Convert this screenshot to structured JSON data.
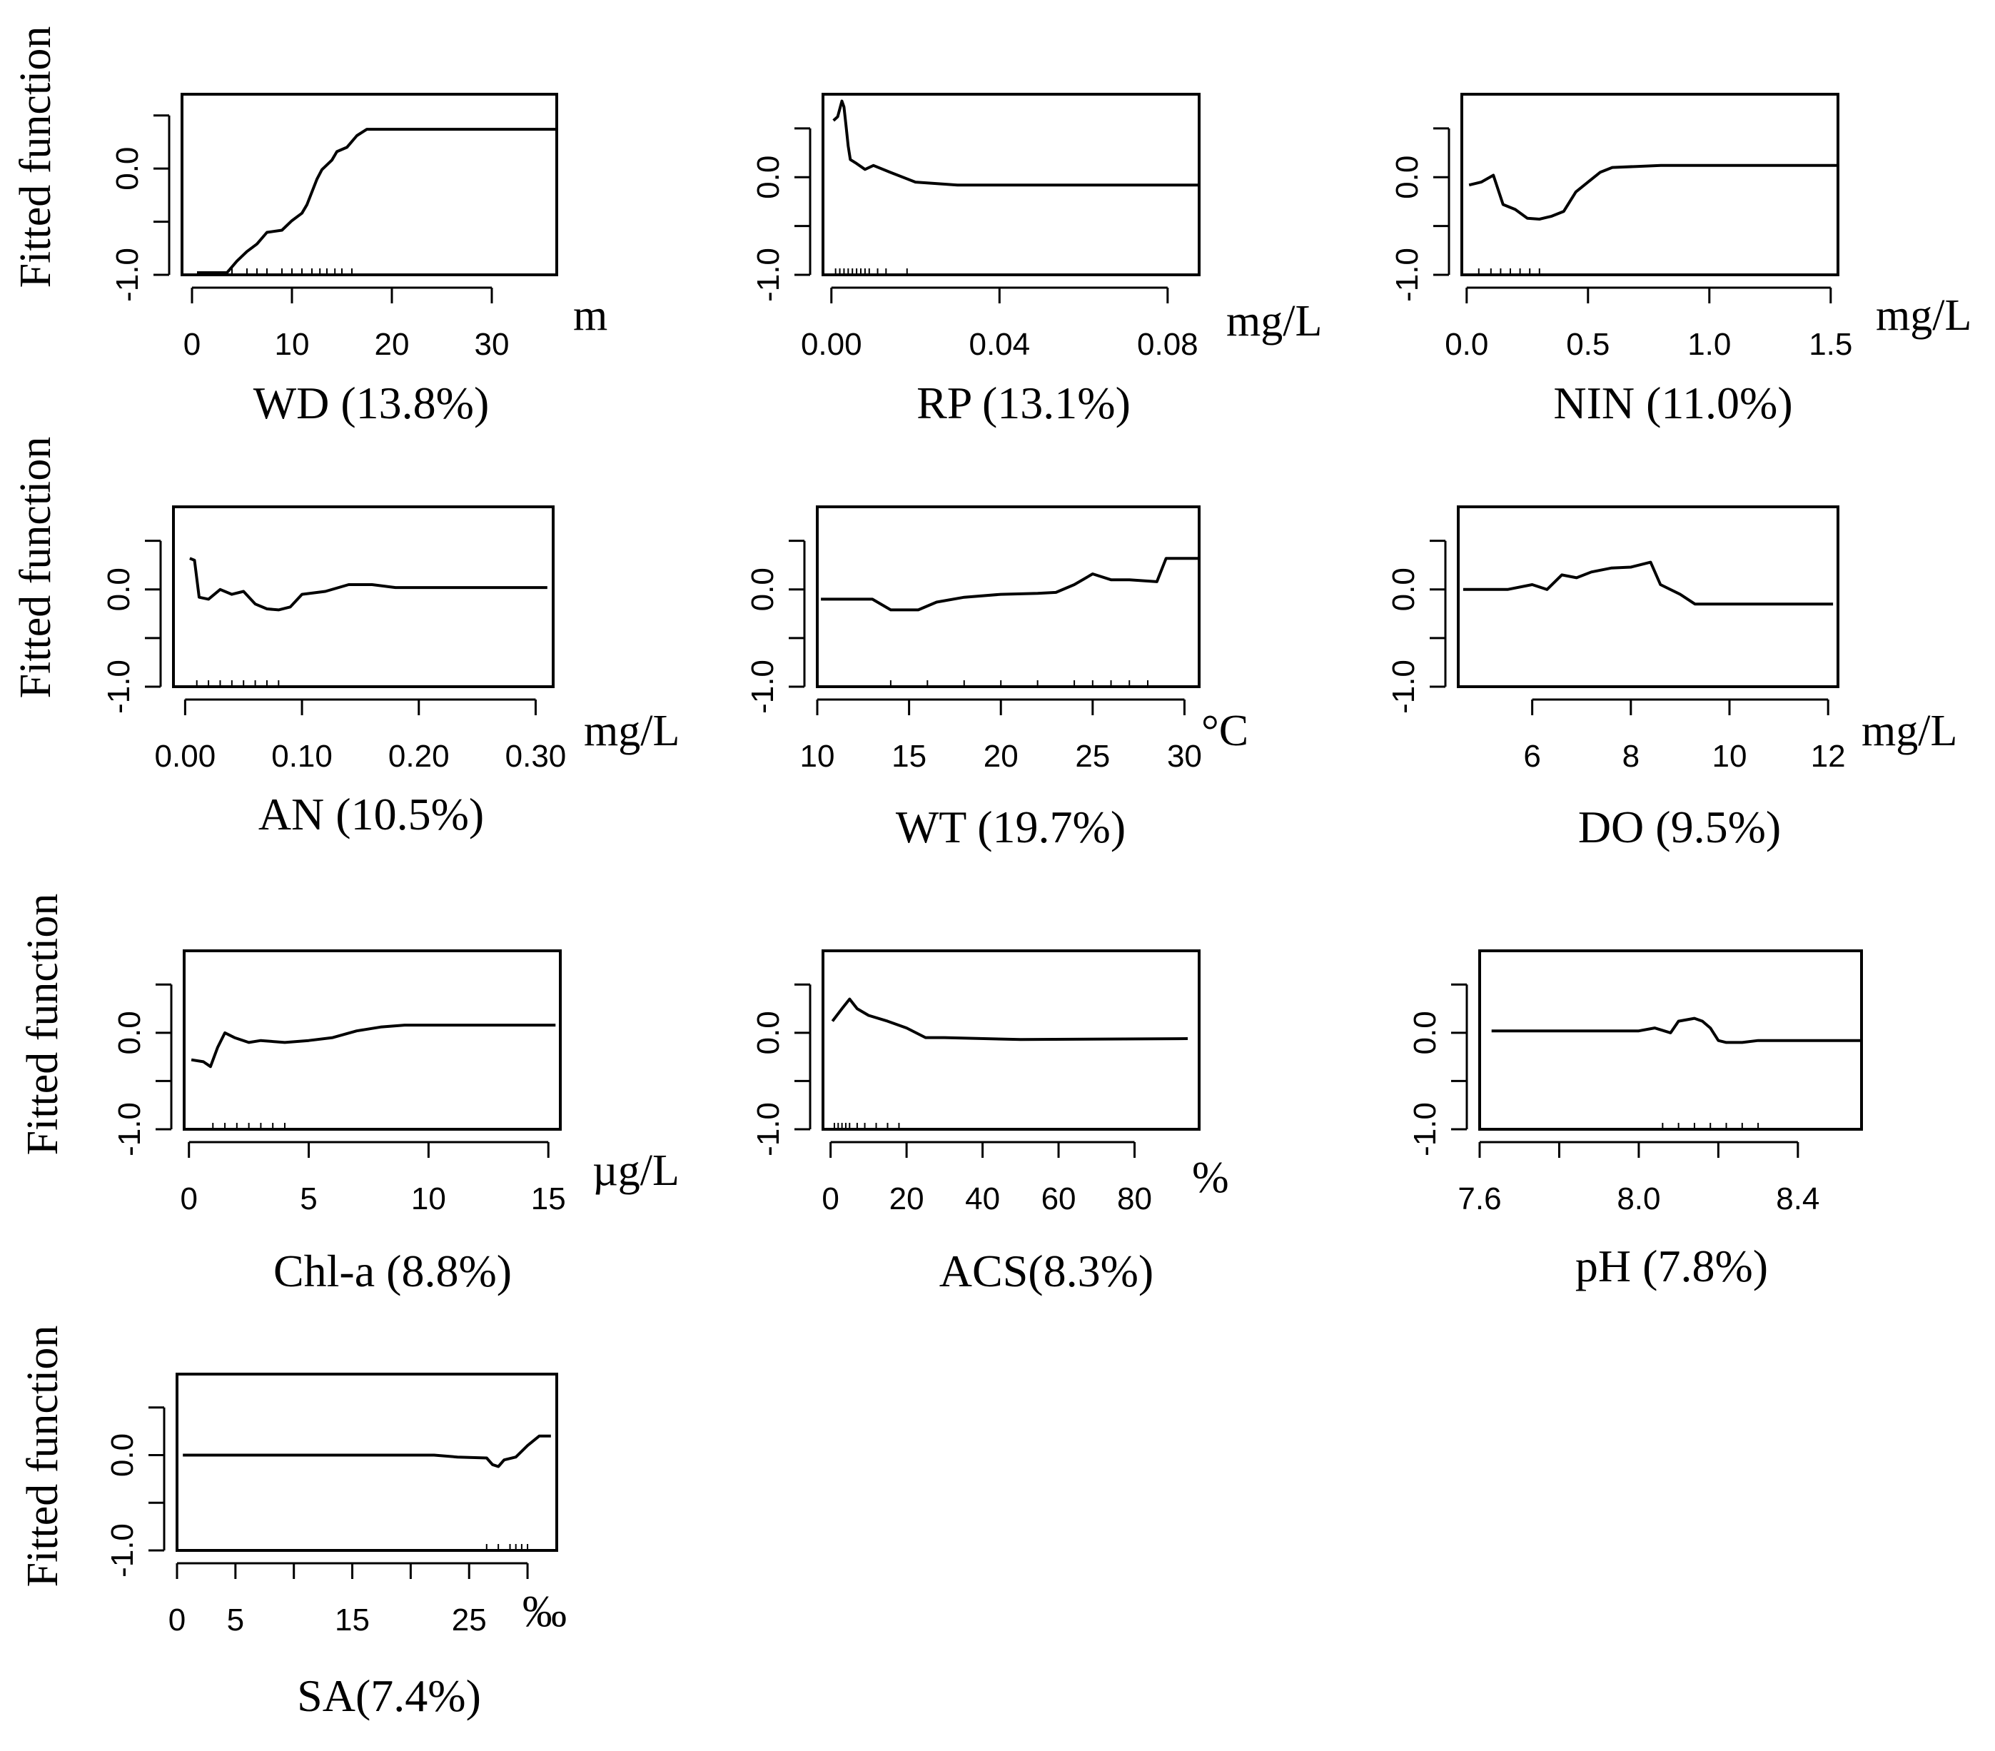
{
  "chart_data": [
    {
      "type": "line",
      "title": "WD (13.8%)",
      "unit": "m",
      "ylabel": "Fitted function",
      "xlim": [
        -1,
        36.5
      ],
      "ylim": [
        -1.0,
        0.7
      ],
      "x_ticks": [
        0,
        10,
        20,
        30
      ],
      "x_tick_labels": [
        "0",
        "10",
        "20",
        "30"
      ],
      "y_ticks": [
        -1.0,
        -0.5,
        0.0,
        0.5
      ],
      "y_tick_labels": [
        "-1.0",
        "",
        "0.0",
        ""
      ],
      "rug": [
        4,
        5.5,
        6.5,
        7.5,
        9,
        10,
        11,
        12,
        12.8,
        13.5,
        14.3,
        15,
        16
      ],
      "x": [
        0.5,
        3.5,
        4.5,
        5.5,
        6.5,
        7.5,
        9,
        10,
        11,
        11.5,
        12.5,
        13,
        14,
        14.5,
        15.5,
        16.5,
        17.5,
        25,
        36.5
      ],
      "y": [
        -0.98,
        -0.98,
        -0.87,
        -0.78,
        -0.71,
        -0.6,
        -0.58,
        -0.49,
        -0.42,
        -0.34,
        -0.1,
        -0.01,
        0.08,
        0.16,
        0.2,
        0.31,
        0.37,
        0.37,
        0.37
      ]
    },
    {
      "type": "line",
      "title": "RP (13.1%)",
      "unit": "mg/L",
      "ylabel": "Fitted function",
      "xlim": [
        -0.002,
        0.0875
      ],
      "ylim": [
        -1.0,
        0.85
      ],
      "x_ticks": [
        0,
        0.04,
        0.08
      ],
      "x_tick_labels": [
        "0.00",
        "0.04",
        "0.08"
      ],
      "y_ticks": [
        -1.0,
        -0.5,
        0.0,
        0.5
      ],
      "y_tick_labels": [
        "-1.0",
        "",
        "0.0",
        ""
      ],
      "rug": [
        0.001,
        0.002,
        0.003,
        0.004,
        0.005,
        0.006,
        0.007,
        0.008,
        0.009,
        0.011,
        0.013,
        0.018
      ],
      "x": [
        0.0005,
        0.0015,
        0.0025,
        0.003,
        0.0035,
        0.004,
        0.0045,
        0.006,
        0.008,
        0.01,
        0.014,
        0.02,
        0.03,
        0.0875
      ],
      "y": [
        0.58,
        0.62,
        0.78,
        0.72,
        0.52,
        0.32,
        0.18,
        0.14,
        0.08,
        0.12,
        0.05,
        -0.05,
        -0.08,
        -0.08
      ]
    },
    {
      "type": "line",
      "title": "NIN (11.0%)",
      "unit": "mg/L",
      "ylabel": "Fitted function",
      "xlim": [
        -0.02,
        1.53
      ],
      "ylim": [
        -1.0,
        0.85
      ],
      "x_ticks": [
        0,
        0.5,
        1.0,
        1.5
      ],
      "x_tick_labels": [
        "0.0",
        "0.5",
        "1.0",
        "1.5"
      ],
      "y_ticks": [
        -1.0,
        -0.5,
        0.0,
        0.5
      ],
      "y_tick_labels": [
        "-1.0",
        "",
        "0.0",
        ""
      ],
      "rug": [
        0.05,
        0.1,
        0.14,
        0.18,
        0.22,
        0.26,
        0.3
      ],
      "x": [
        0.01,
        0.06,
        0.11,
        0.15,
        0.2,
        0.25,
        0.3,
        0.35,
        0.4,
        0.45,
        0.5,
        0.55,
        0.6,
        0.7,
        0.8,
        1.0,
        1.53
      ],
      "y": [
        -0.08,
        -0.05,
        0.02,
        -0.28,
        -0.33,
        -0.42,
        -0.43,
        -0.4,
        -0.35,
        -0.15,
        -0.05,
        0.05,
        0.1,
        0.11,
        0.12,
        0.12,
        0.12
      ]
    },
    {
      "type": "line",
      "title": "AN (10.5%)",
      "unit": "mg/L",
      "ylabel": "Fitted function",
      "xlim": [
        -0.01,
        0.315
      ],
      "ylim": [
        -1.0,
        0.85
      ],
      "x_ticks": [
        0,
        0.1,
        0.2,
        0.3
      ],
      "x_tick_labels": [
        "0.00",
        "0.10",
        "0.20",
        "0.30"
      ],
      "y_ticks": [
        -1.0,
        -0.5,
        0.0,
        0.5
      ],
      "y_tick_labels": [
        "-1.0",
        "",
        "0.0",
        ""
      ],
      "rug": [
        0.01,
        0.02,
        0.03,
        0.04,
        0.05,
        0.06,
        0.07,
        0.08
      ],
      "x": [
        0.004,
        0.008,
        0.012,
        0.02,
        0.03,
        0.04,
        0.05,
        0.06,
        0.07,
        0.08,
        0.09,
        0.1,
        0.12,
        0.14,
        0.16,
        0.18,
        0.2,
        0.31
      ],
      "y": [
        0.32,
        0.3,
        -0.08,
        -0.1,
        0.0,
        -0.05,
        -0.02,
        -0.15,
        -0.2,
        -0.21,
        -0.18,
        -0.05,
        -0.02,
        0.05,
        0.05,
        0.02,
        0.02,
        0.02
      ]
    },
    {
      "type": "line",
      "title": "WT (19.7%)",
      "unit": "°C",
      "ylabel": "Fitted function",
      "xlim": [
        10,
        30.8
      ],
      "ylim": [
        -1.0,
        0.85
      ],
      "x_ticks": [
        10,
        15,
        20,
        25,
        30
      ],
      "x_tick_labels": [
        "10",
        "15",
        "20",
        "25",
        "30"
      ],
      "y_ticks": [
        -1.0,
        -0.5,
        0.0,
        0.5
      ],
      "y_tick_labels": [
        "-1.0",
        "",
        "0.0",
        ""
      ],
      "rug": [
        14,
        16,
        18,
        20,
        22,
        24,
        25,
        26,
        27,
        28
      ],
      "x": [
        10.2,
        13,
        14,
        15.5,
        16.5,
        18,
        20,
        22,
        23,
        24,
        25,
        26,
        27,
        28.5,
        29,
        30.8
      ],
      "y": [
        -0.1,
        -0.1,
        -0.21,
        -0.21,
        -0.13,
        -0.08,
        -0.05,
        -0.04,
        -0.03,
        0.05,
        0.16,
        0.1,
        0.1,
        0.08,
        0.32,
        0.32
      ]
    },
    {
      "type": "line",
      "title": "DO (9.5%)",
      "unit": "mg/L",
      "ylabel": "Fitted function",
      "xlim": [
        4.5,
        12.2
      ],
      "ylim": [
        -1.0,
        0.85
      ],
      "x_ticks": [
        6,
        8,
        10,
        12
      ],
      "x_tick_labels": [
        "6",
        "8",
        "10",
        "12"
      ],
      "y_ticks": [
        -1.0,
        -0.5,
        0.0,
        0.5
      ],
      "y_tick_labels": [
        "-1.0",
        "",
        "0.0",
        ""
      ],
      "rug": [],
      "x": [
        4.6,
        5.5,
        6.0,
        6.3,
        6.6,
        6.9,
        7.2,
        7.6,
        8.0,
        8.4,
        8.6,
        9.0,
        9.3,
        10.0,
        12.1
      ],
      "y": [
        0.0,
        0.0,
        0.05,
        0.0,
        0.15,
        0.12,
        0.18,
        0.22,
        0.23,
        0.28,
        0.05,
        -0.05,
        -0.15,
        -0.15,
        -0.15
      ]
    },
    {
      "type": "line",
      "title": "Chl-a (8.8%)",
      "unit": "µg/L",
      "ylabel": "Fitted function",
      "xlim": [
        -0.2,
        15.5
      ],
      "ylim": [
        -1.0,
        0.85
      ],
      "x_ticks": [
        0,
        5,
        10,
        15
      ],
      "x_tick_labels": [
        "0",
        "5",
        "10",
        "15"
      ],
      "y_ticks": [
        -1.0,
        -0.5,
        0.0,
        0.5
      ],
      "y_tick_labels": [
        "-1.0",
        "",
        "0.0",
        ""
      ],
      "rug": [
        1,
        1.5,
        2,
        2.5,
        3,
        3.5,
        4
      ],
      "x": [
        0.1,
        0.6,
        0.9,
        1.2,
        1.5,
        1.9,
        2.5,
        3,
        4,
        5,
        6,
        7,
        8,
        9,
        15.3
      ],
      "y": [
        -0.28,
        -0.3,
        -0.35,
        -0.15,
        0.0,
        -0.05,
        -0.1,
        -0.08,
        -0.1,
        -0.08,
        -0.05,
        0.02,
        0.06,
        0.08,
        0.08
      ]
    },
    {
      "type": "line",
      "title": "ACS(8.3%)",
      "unit": "%",
      "ylabel": "",
      "xlim": [
        -2,
        97
      ],
      "ylim": [
        -1.0,
        0.85
      ],
      "x_ticks": [
        0,
        20,
        40,
        60,
        80
      ],
      "x_tick_labels": [
        "0",
        "20",
        "40",
        "60",
        "80"
      ],
      "y_ticks": [
        -1.0,
        -0.5,
        0.0,
        0.5
      ],
      "y_tick_labels": [
        "-1.0",
        "",
        "0.0",
        ""
      ],
      "rug": [
        1,
        2,
        3,
        4,
        5,
        7,
        9,
        12,
        15,
        18
      ],
      "x": [
        0.5,
        3,
        5,
        7,
        10,
        15,
        20,
        25,
        30,
        50,
        94
      ],
      "y": [
        0.12,
        0.25,
        0.35,
        0.25,
        0.18,
        0.12,
        0.05,
        -0.05,
        -0.05,
        -0.07,
        -0.06
      ]
    },
    {
      "type": "line",
      "title": "pH (7.8%)",
      "unit": "",
      "ylabel": "",
      "xlim": [
        7.6,
        8.56
      ],
      "ylim": [
        -1.0,
        0.85
      ],
      "x_ticks": [
        7.6,
        7.8,
        8.0,
        8.2,
        8.4
      ],
      "x_tick_labels": [
        "7.6",
        "",
        "8.0",
        "",
        "8.4"
      ],
      "y_ticks": [
        -1.0,
        -0.5,
        0.0,
        0.5
      ],
      "y_tick_labels": [
        "-1.0",
        "",
        "0.0",
        ""
      ],
      "rug": [
        8.06,
        8.1,
        8.14,
        8.18,
        8.22,
        8.26,
        8.3
      ],
      "x": [
        7.63,
        7.9,
        8.0,
        8.04,
        8.08,
        8.1,
        8.14,
        8.16,
        8.18,
        8.2,
        8.22,
        8.26,
        8.3,
        8.56
      ],
      "y": [
        0.02,
        0.02,
        0.02,
        0.05,
        0.0,
        0.12,
        0.15,
        0.12,
        0.05,
        -0.08,
        -0.1,
        -0.1,
        -0.08,
        -0.08
      ]
    },
    {
      "type": "line",
      "title": "SA(7.4%)",
      "unit": "‰",
      "ylabel": "Fitted function",
      "xlim": [
        0,
        32.5
      ],
      "ylim": [
        -1.0,
        0.85
      ],
      "x_ticks": [
        0,
        5,
        10,
        15,
        20,
        25,
        30
      ],
      "x_tick_labels": [
        "0",
        "5",
        "",
        "15",
        "",
        "25",
        ""
      ],
      "y_ticks": [
        -1.0,
        -0.5,
        0.0,
        0.5
      ],
      "y_tick_labels": [
        "-1.0",
        "",
        "0.0",
        ""
      ],
      "rug": [
        26.5,
        27.5,
        28.5,
        29,
        29.5,
        30
      ],
      "x": [
        0.5,
        10,
        22,
        24,
        26.5,
        27,
        27.5,
        28,
        29,
        30,
        31,
        32
      ],
      "y": [
        0.0,
        0.0,
        0.0,
        -0.02,
        -0.03,
        -0.1,
        -0.12,
        -0.05,
        -0.02,
        0.1,
        0.2,
        0.2
      ]
    }
  ]
}
